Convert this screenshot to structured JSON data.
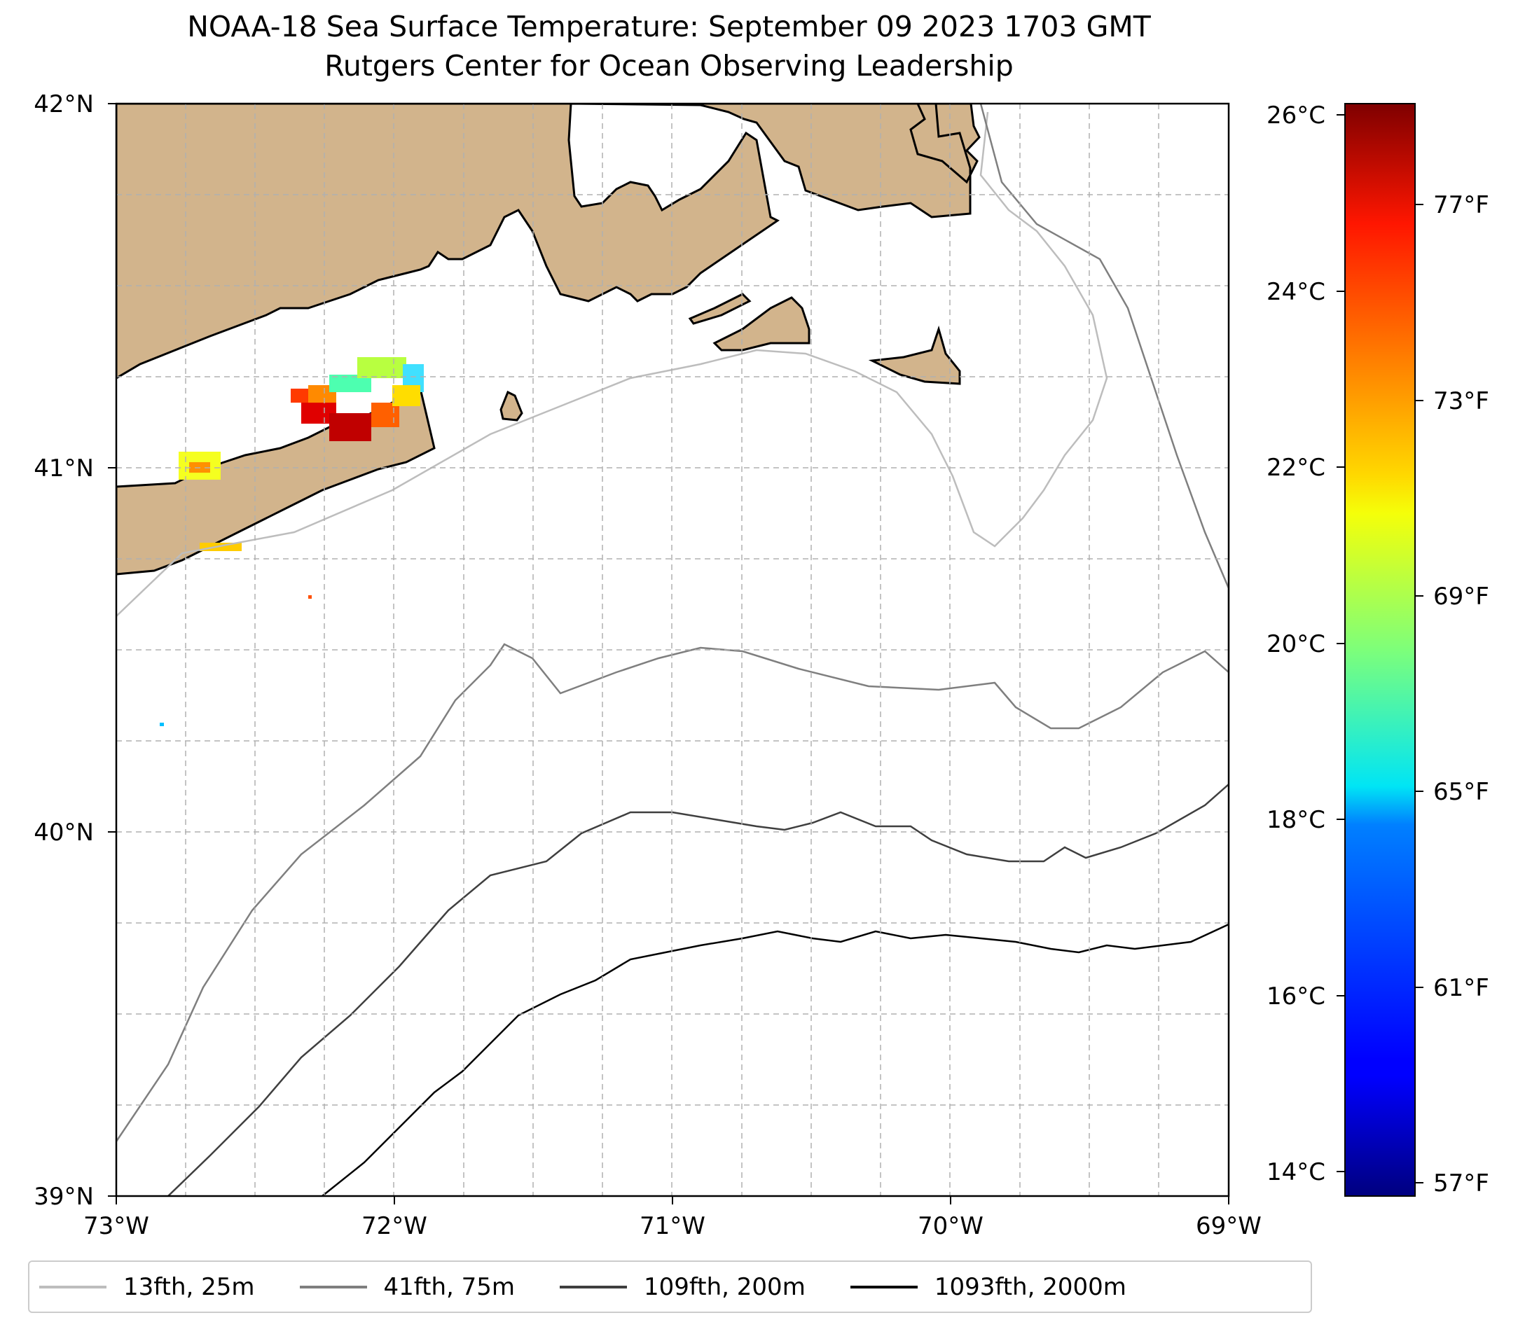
{
  "title": {
    "line1": "NOAA-18 Sea Surface Temperature: September 09 2023 1703 GMT",
    "line2": "Rutgers Center for Ocean Observing Leadership"
  },
  "map": {
    "lon_range": [
      -73,
      -69
    ],
    "lat_range": [
      39,
      42
    ],
    "lon_ticks": [
      {
        "value": -73,
        "label": "73°W"
      },
      {
        "value": -72,
        "label": "72°W"
      },
      {
        "value": -71,
        "label": "71°W"
      },
      {
        "value": -70,
        "label": "70°W"
      },
      {
        "value": -69,
        "label": "69°W"
      }
    ],
    "lat_ticks": [
      {
        "value": 42,
        "label": "42°N"
      },
      {
        "value": 41,
        "label": "41°N"
      },
      {
        "value": 40,
        "label": "40°N"
      },
      {
        "value": 39,
        "label": "39°N"
      }
    ],
    "grid": true,
    "land_color": "#d2b48c",
    "coast_color": "#000000"
  },
  "colorbar": {
    "colormap": "jet",
    "range_c": [
      13.8,
      26.2
    ],
    "celsius_ticks": [
      {
        "value": 26,
        "label": "26°C"
      },
      {
        "value": 24,
        "label": "24°C"
      },
      {
        "value": 22,
        "label": "22°C"
      },
      {
        "value": 20,
        "label": "20°C"
      },
      {
        "value": 18,
        "label": "18°C"
      },
      {
        "value": 16,
        "label": "16°C"
      },
      {
        "value": 14,
        "label": "14°C"
      }
    ],
    "fahrenheit_ticks": [
      {
        "value": 77,
        "label": "77°F"
      },
      {
        "value": 73,
        "label": "73°F"
      },
      {
        "value": 69,
        "label": "69°F"
      },
      {
        "value": 65,
        "label": "65°F"
      },
      {
        "value": 61,
        "label": "61°F"
      },
      {
        "value": 57,
        "label": "57°F"
      }
    ]
  },
  "legend": {
    "items": [
      {
        "label": "13fth, 25m",
        "color": "#bdbdbd"
      },
      {
        "label": "41fth, 75m",
        "color": "#7f7f7f"
      },
      {
        "label": "109fth, 200m",
        "color": "#3f3f3f"
      },
      {
        "label": "1093fth, 2000m",
        "color": "#000000"
      }
    ]
  }
}
